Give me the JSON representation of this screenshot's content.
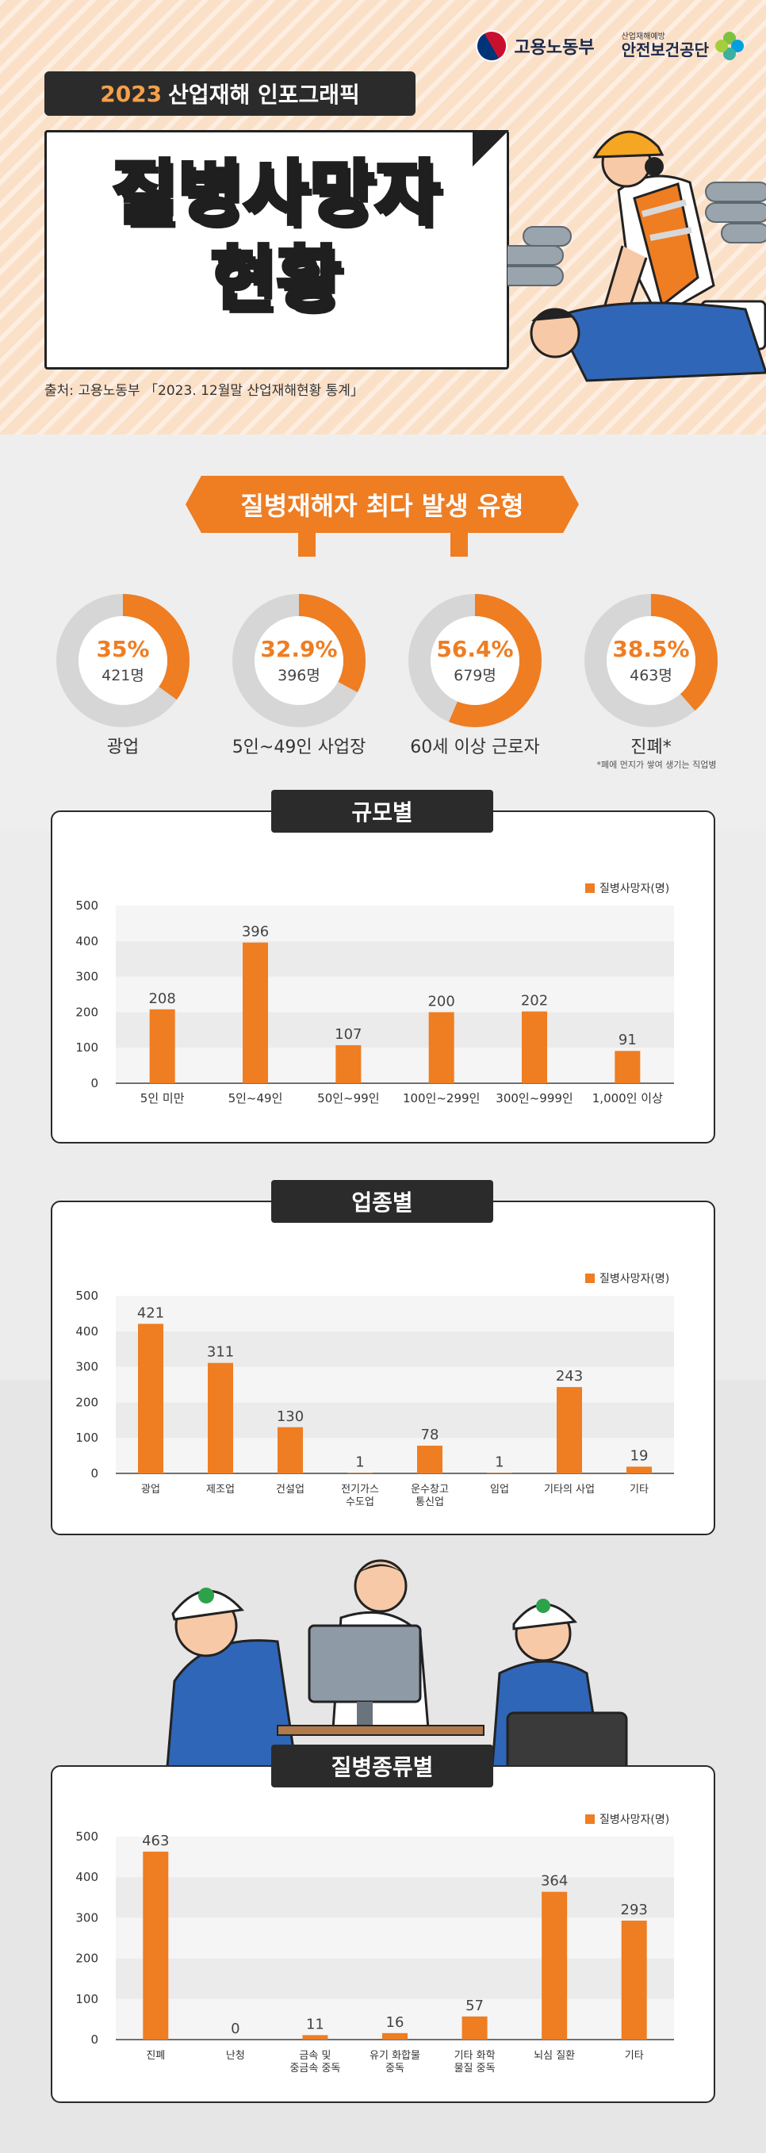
{
  "header": {
    "ministry": "고용노동부",
    "agency_sub": "산업재해예방",
    "agency": "안전보건공단",
    "pill_year": "2023",
    "pill_text": "산업재해 인포그래픽",
    "title_line1": "질병사망자",
    "title_line2": "현황",
    "source": "출처: 고용노동부 「2023. 12월말 산업재해현황 통계」"
  },
  "types_section": {
    "banner": "질병재해자 최다 발생 유형",
    "footnote": "*폐에 먼지가 쌓여 생기는 직업병",
    "items": [
      {
        "pct": "35%",
        "count": "421명",
        "label": "광업",
        "value": 35
      },
      {
        "pct": "32.9%",
        "count": "396명",
        "label": "5인~49인 사업장",
        "value": 32.9
      },
      {
        "pct": "56.4%",
        "count": "679명",
        "label": "60세 이상 근로자",
        "value": 56.4
      },
      {
        "pct": "38.5%",
        "count": "463명",
        "label": "진폐*",
        "value": 38.5
      }
    ]
  },
  "colors": {
    "accent": "#ef7d22",
    "dark": "#2b2b2b",
    "ring_bg": "#d6d6d6"
  },
  "chart_data": [
    {
      "type": "bar",
      "title": "규모별",
      "legend": "질병사망자(명)",
      "categories": [
        "5인 미만",
        "5인~49인",
        "50인~99인",
        "100인~299인",
        "300인~999인",
        "1,000인 이상"
      ],
      "values": [
        208,
        396,
        107,
        200,
        202,
        91
      ],
      "ylim": [
        0,
        500
      ],
      "yticks": [
        0,
        100,
        200,
        300,
        400,
        500
      ]
    },
    {
      "type": "bar",
      "title": "업종별",
      "legend": "질병사망자(명)",
      "categories": [
        "광업",
        "제조업",
        "건설업",
        "전기가스\n수도업",
        "운수창고\n통신업",
        "임업",
        "기타의 사업",
        "기타"
      ],
      "values": [
        421,
        311,
        130,
        1,
        78,
        1,
        243,
        19
      ],
      "ylim": [
        0,
        500
      ],
      "yticks": [
        0,
        100,
        200,
        300,
        400,
        500
      ]
    },
    {
      "type": "bar",
      "title": "질병종류별",
      "legend": "질병사망자(명)",
      "categories": [
        "진폐",
        "난청",
        "금속 및\n중금속 중독",
        "유기 화합물\n중독",
        "기타 화학\n물질 중독",
        "뇌심 질환",
        "기타"
      ],
      "values": [
        463,
        0,
        11,
        16,
        57,
        364,
        293
      ],
      "ylim": [
        0,
        500
      ],
      "yticks": [
        0,
        100,
        200,
        300,
        400,
        500
      ]
    }
  ]
}
